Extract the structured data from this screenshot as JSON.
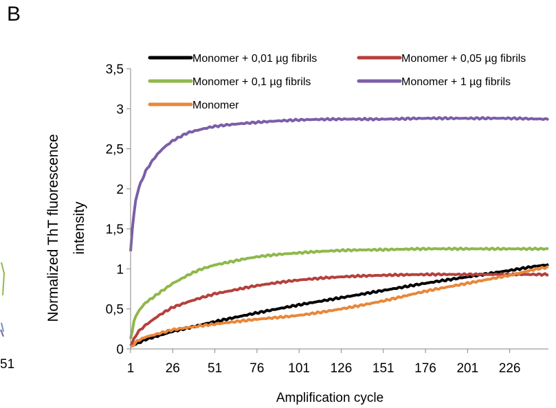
{
  "panel_label": "B",
  "left_fragment": {
    "tick_label": "51"
  },
  "chart_data": {
    "type": "line",
    "xlabel": "Amplification cycle",
    "ylabel_lines": [
      "Normalized ThT fluorescence",
      "intensity"
    ],
    "xlim": [
      1,
      249
    ],
    "ylim": [
      0,
      3.5
    ],
    "x_ticks": [
      1,
      26,
      51,
      76,
      101,
      126,
      151,
      176,
      201,
      226
    ],
    "x_tick_labels": [
      "1",
      "26",
      "51",
      "76",
      "101",
      "126",
      "151",
      "176",
      "201",
      "226"
    ],
    "y_ticks": [
      0,
      0.5,
      1,
      1.5,
      2,
      2.5,
      3,
      3.5
    ],
    "y_tick_labels": [
      "0",
      "0,5",
      "1",
      "1,5",
      "2",
      "2,5",
      "3",
      "3,5"
    ],
    "grid": false,
    "legend_position": "top",
    "series": [
      {
        "name": "Monomer + 0,01 µg fibrils",
        "color": "#000000",
        "x": [
          1,
          10,
          26,
          51,
          76,
          101,
          126,
          151,
          176,
          201,
          226,
          249
        ],
        "y": [
          0.04,
          0.12,
          0.22,
          0.34,
          0.45,
          0.55,
          0.64,
          0.73,
          0.82,
          0.9,
          0.98,
          1.05
        ]
      },
      {
        "name": "Monomer + 0,05 µg fibrils",
        "color": "#b5403c",
        "x": [
          1,
          5,
          10,
          18,
          26,
          40,
          51,
          76,
          101,
          126,
          151,
          176,
          201,
          226,
          249
        ],
        "y": [
          0.05,
          0.2,
          0.3,
          0.42,
          0.52,
          0.62,
          0.69,
          0.79,
          0.86,
          0.9,
          0.92,
          0.93,
          0.93,
          0.93,
          0.93
        ]
      },
      {
        "name": "Monomer + 0,1 µg fibrils",
        "color": "#8fb84a",
        "x": [
          1,
          3,
          6,
          10,
          18,
          26,
          40,
          51,
          76,
          101,
          126,
          151,
          176,
          201,
          226,
          249
        ],
        "y": [
          0.12,
          0.35,
          0.48,
          0.58,
          0.7,
          0.82,
          0.97,
          1.05,
          1.15,
          1.2,
          1.23,
          1.24,
          1.25,
          1.25,
          1.25,
          1.25
        ]
      },
      {
        "name": "Monomer + 1 µg fibrils",
        "color": "#7b5ea7",
        "x": [
          1,
          2,
          4,
          6,
          10,
          15,
          20,
          26,
          35,
          51,
          76,
          101,
          126,
          151,
          176,
          201,
          226,
          249
        ],
        "y": [
          1.22,
          1.5,
          1.85,
          2.02,
          2.22,
          2.38,
          2.5,
          2.6,
          2.7,
          2.78,
          2.83,
          2.86,
          2.87,
          2.87,
          2.88,
          2.88,
          2.88,
          2.87
        ]
      },
      {
        "name": "Monomer",
        "color": "#e8873a",
        "x": [
          1,
          5,
          10,
          26,
          51,
          76,
          101,
          126,
          151,
          176,
          201,
          226,
          249
        ],
        "y": [
          0.02,
          0.1,
          0.15,
          0.24,
          0.31,
          0.37,
          0.42,
          0.5,
          0.6,
          0.72,
          0.82,
          0.92,
          1.02
        ]
      }
    ]
  }
}
